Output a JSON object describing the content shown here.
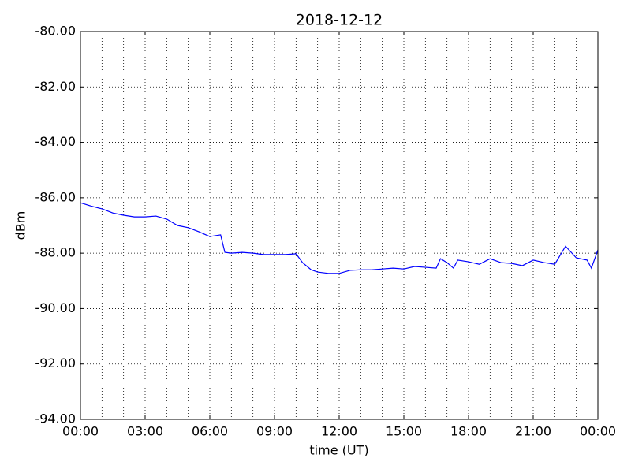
{
  "chart_data": {
    "type": "line",
    "title": "2018-12-12",
    "xlabel": "time (UT)",
    "ylabel": "dBm",
    "x": [
      0,
      0.5,
      1,
      1.5,
      2,
      2.5,
      3,
      3.5,
      4,
      4.5,
      5,
      5.5,
      6,
      6.5,
      6.7,
      7,
      7.5,
      8,
      8.5,
      9,
      9.5,
      10,
      10.3,
      10.7,
      11,
      11.5,
      12,
      12.5,
      13,
      13.5,
      14,
      14.5,
      15,
      15.5,
      16,
      16.5,
      16.7,
      17,
      17.3,
      17.5,
      18,
      18.5,
      19,
      19.5,
      20,
      20.5,
      21,
      21.5,
      22,
      22.5,
      23,
      23.5,
      23.7,
      24
    ],
    "series": [
      {
        "color": "#0000ff",
        "values": [
          -86.18,
          -86.3,
          -86.4,
          -86.55,
          -86.63,
          -86.69,
          -86.69,
          -86.66,
          -86.77,
          -87.0,
          -87.08,
          -87.23,
          -87.4,
          -87.34,
          -87.97,
          -88.0,
          -87.97,
          -88.0,
          -88.05,
          -88.05,
          -88.05,
          -88.02,
          -88.34,
          -88.6,
          -88.68,
          -88.73,
          -88.73,
          -88.62,
          -88.6,
          -88.6,
          -88.57,
          -88.54,
          -88.57,
          -88.48,
          -88.51,
          -88.54,
          -88.2,
          -88.34,
          -88.54,
          -88.25,
          -88.31,
          -88.4,
          -88.2,
          -88.34,
          -88.37,
          -88.45,
          -88.25,
          -88.34,
          -88.4,
          -87.75,
          -88.17,
          -88.25,
          -88.54,
          -87.88
        ]
      }
    ],
    "xlim": [
      0,
      24
    ],
    "xticks": [
      {
        "value": 0,
        "label": "00:00"
      },
      {
        "value": 3,
        "label": "03:00"
      },
      {
        "value": 6,
        "label": "06:00"
      },
      {
        "value": 9,
        "label": "09:00"
      },
      {
        "value": 12,
        "label": "12:00"
      },
      {
        "value": 15,
        "label": "15:00"
      },
      {
        "value": 18,
        "label": "18:00"
      },
      {
        "value": 21,
        "label": "21:00"
      },
      {
        "value": 24,
        "label": "00:00"
      }
    ],
    "xminorticks": [
      1,
      2,
      4,
      5,
      7,
      8,
      10,
      11,
      13,
      14,
      16,
      17,
      19,
      20,
      22,
      23
    ],
    "ylim": [
      -94,
      -80
    ],
    "yticks": [
      {
        "value": -94,
        "label": "-94.00"
      },
      {
        "value": -92,
        "label": "-92.00"
      },
      {
        "value": -90,
        "label": "-90.00"
      },
      {
        "value": -88,
        "label": "-88.00"
      },
      {
        "value": -86,
        "label": "-86.00"
      },
      {
        "value": -84,
        "label": "-84.00"
      },
      {
        "value": -82,
        "label": "-82.00"
      },
      {
        "value": -80,
        "label": "-80.00"
      }
    ],
    "grid": true
  }
}
